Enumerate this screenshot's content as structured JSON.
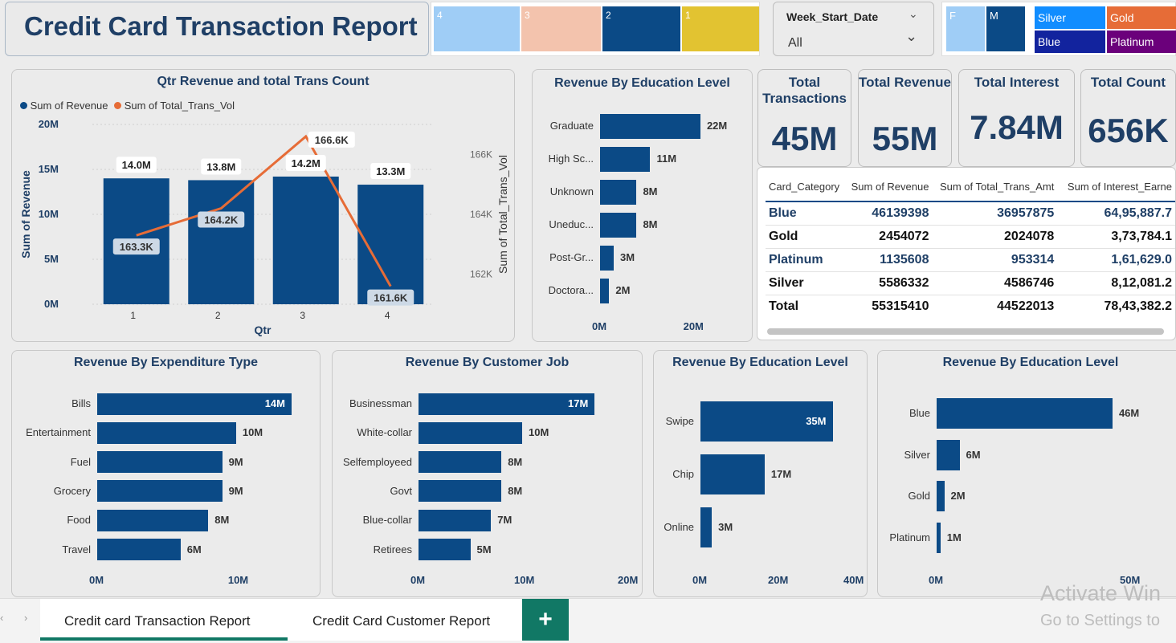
{
  "title": "Credit Card Transaction Report",
  "quarter_slicer": [
    {
      "label": "4",
      "color": "#9fcdf6"
    },
    {
      "label": "3",
      "color": "#f3c3ad"
    },
    {
      "label": "2",
      "color": "#0b4a86"
    },
    {
      "label": "1",
      "color": "#e2c331"
    }
  ],
  "week_slicer": {
    "label": "Week_Start_Date",
    "value": "All"
  },
  "gender_slicer": [
    {
      "label": "F",
      "color": "#9fcdf6"
    },
    {
      "label": "M",
      "color": "#0b4a86"
    }
  ],
  "category_slicer": [
    {
      "label": "Silver",
      "color": "#118dff"
    },
    {
      "label": "Gold",
      "color": "#e66c37"
    },
    {
      "label": "Blue",
      "color": "#12239e"
    },
    {
      "label": "Platinum",
      "color": "#6b007b"
    }
  ],
  "kpis": [
    {
      "title": "Total Transactions",
      "value": "45M"
    },
    {
      "title": "Total Revenue",
      "value": "55M"
    },
    {
      "title": "Total Interest",
      "value": "7.84M"
    },
    {
      "title": "Total Count",
      "value": "656K"
    }
  ],
  "table": {
    "headers": [
      "Card_Category",
      "Sum of Revenue",
      "Sum of Total_Trans_Amt",
      "Sum of Interest_Earne"
    ],
    "rows": [
      [
        "Blue",
        "46139398",
        "36957875",
        "64,95,887.7"
      ],
      [
        "Gold",
        "2454072",
        "2024078",
        "3,73,784.1"
      ],
      [
        "Platinum",
        "1135608",
        "953314",
        "1,61,629.0"
      ],
      [
        "Silver",
        "5586332",
        "4586746",
        "8,12,081.2"
      ]
    ],
    "total": [
      "Total",
      "55315410",
      "44522013",
      "78,43,382.2"
    ]
  },
  "tabs": {
    "active": "Credit card Transaction Report",
    "other": "Credit Card Customer Report",
    "add": "+"
  },
  "watermark": {
    "line1": "Activate Win",
    "line2": "Go to Settings to"
  },
  "chart_data": [
    {
      "type": "bar",
      "title": "Qtr Revenue and total Trans Count",
      "categories": [
        "1",
        "2",
        "3",
        "4"
      ],
      "series": [
        {
          "name": "Sum of Revenue",
          "values": [
            14.0,
            13.8,
            14.2,
            13.3
          ],
          "labels": [
            "14.0M",
            "13.8M",
            "14.2M",
            "13.3M"
          ],
          "color": "#0b4a86"
        },
        {
          "name": "Sum of Total_Trans_Vol",
          "values": [
            163.3,
            164.2,
            166.6,
            161.6
          ],
          "labels": [
            "163.3K",
            "164.2K",
            "166.6K",
            "161.6K"
          ],
          "color": "#e66c37",
          "axis": "secondary"
        }
      ],
      "xlabel": "Qtr",
      "ylabel": "Sum of Revenue",
      "y2label": "Sum of Total_Trans_Vol",
      "yticks": [
        "0M",
        "5M",
        "10M",
        "15M",
        "20M"
      ],
      "y2ticks": [
        "162K",
        "164K",
        "166K"
      ],
      "ylim": [
        0,
        20
      ],
      "y2lim": [
        161.0,
        167.0
      ]
    },
    {
      "type": "bar",
      "title": "Revenue By Education Level",
      "categories": [
        "Graduate",
        "High Sc...",
        "Unknown",
        "Uneduc...",
        "Post-Gr...",
        "Doctora..."
      ],
      "values": [
        22,
        11,
        8,
        8,
        3,
        2
      ],
      "labels": [
        "22M",
        "11M",
        "8M",
        "8M",
        "3M",
        "2M"
      ],
      "xticks": [
        "0M",
        "20M"
      ],
      "xlim": [
        0,
        25
      ]
    },
    {
      "type": "bar",
      "title": "Revenue By Expenditure Type",
      "categories": [
        "Bills",
        "Entertainment",
        "Fuel",
        "Grocery",
        "Food",
        "Travel"
      ],
      "values": [
        14,
        10,
        9,
        9,
        8,
        6
      ],
      "labels": [
        "14M",
        "10M",
        "9M",
        "9M",
        "8M",
        "6M"
      ],
      "xticks": [
        "0M",
        "10M"
      ],
      "xlim": [
        0,
        14
      ]
    },
    {
      "type": "bar",
      "title": "Revenue By Customer Job",
      "categories": [
        "Businessman",
        "White-collar",
        "Selfemployeed",
        "Govt",
        "Blue-collar",
        "Retirees"
      ],
      "values": [
        17,
        10,
        8,
        8,
        7,
        5
      ],
      "labels": [
        "17M",
        "10M",
        "8M",
        "8M",
        "7M",
        "5M"
      ],
      "xticks": [
        "0M",
        "10M",
        "20M"
      ],
      "xlim": [
        0,
        20
      ]
    },
    {
      "type": "bar",
      "title": "Revenue By Education Level",
      "categories": [
        "Swipe",
        "Chip",
        "Online"
      ],
      "values": [
        35,
        17,
        3
      ],
      "labels": [
        "35M",
        "17M",
        "3M"
      ],
      "xticks": [
        "0M",
        "20M",
        "40M"
      ],
      "xlim": [
        0,
        40
      ]
    },
    {
      "type": "bar",
      "title": "Revenue By Education Level",
      "categories": [
        "Blue",
        "Silver",
        "Gold",
        "Platinum"
      ],
      "values": [
        46,
        6,
        2,
        1
      ],
      "labels": [
        "46M",
        "6M",
        "2M",
        "1M"
      ],
      "xticks": [
        "0M",
        "50M"
      ],
      "xlim": [
        0,
        50
      ]
    }
  ]
}
